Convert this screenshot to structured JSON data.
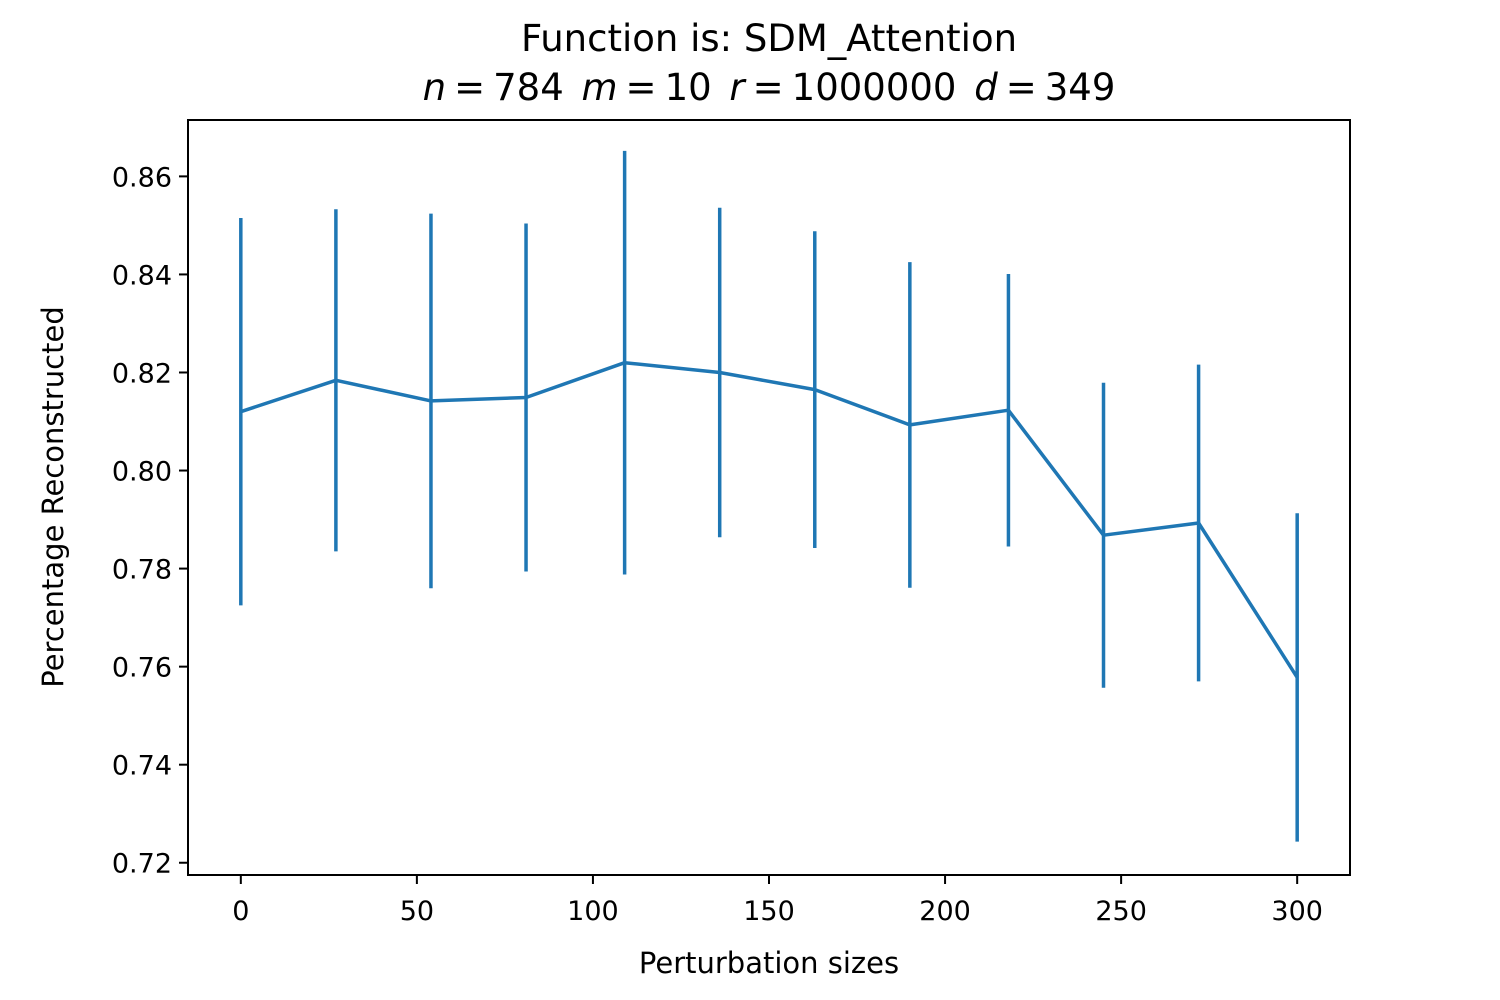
{
  "chart_data": {
    "type": "line",
    "title": "Function is: SDM_Attention",
    "subtitle": {
      "n_symbol": "n",
      "n_value": "784",
      "m_symbol": "m",
      "m_value": "10",
      "r_symbol": "r",
      "r_value": "1000000",
      "d_symbol": "d",
      "d_value": "349",
      "eq": "="
    },
    "xlabel": "Perturbation sizes",
    "ylabel": "Percentage Reconstructed",
    "xlim": [
      -15,
      315
    ],
    "ylim": [
      0.7175,
      0.8715
    ],
    "xticks": [
      0,
      50,
      100,
      150,
      200,
      250,
      300
    ],
    "xtick_labels": [
      "0",
      "50",
      "100",
      "150",
      "200",
      "250",
      "300"
    ],
    "yticks": [
      0.72,
      0.74,
      0.76,
      0.78,
      0.8,
      0.82,
      0.84,
      0.86
    ],
    "ytick_labels": [
      "0.72",
      "0.74",
      "0.76",
      "0.78",
      "0.80",
      "0.82",
      "0.84",
      "0.86"
    ],
    "grid": false,
    "color": "#1f77b4",
    "series": [
      {
        "x": [
          0,
          27,
          54,
          81,
          109,
          136,
          163,
          190,
          218,
          245,
          272,
          300
        ],
        "y": [
          0.812,
          0.8184,
          0.8142,
          0.8149,
          0.822,
          0.82,
          0.8165,
          0.8093,
          0.8123,
          0.7868,
          0.7893,
          0.7578
        ],
        "error": [
          0.0395,
          0.0349,
          0.0382,
          0.0355,
          0.0432,
          0.0336,
          0.0323,
          0.0332,
          0.0278,
          0.0311,
          0.0323,
          0.0335
        ]
      }
    ]
  }
}
